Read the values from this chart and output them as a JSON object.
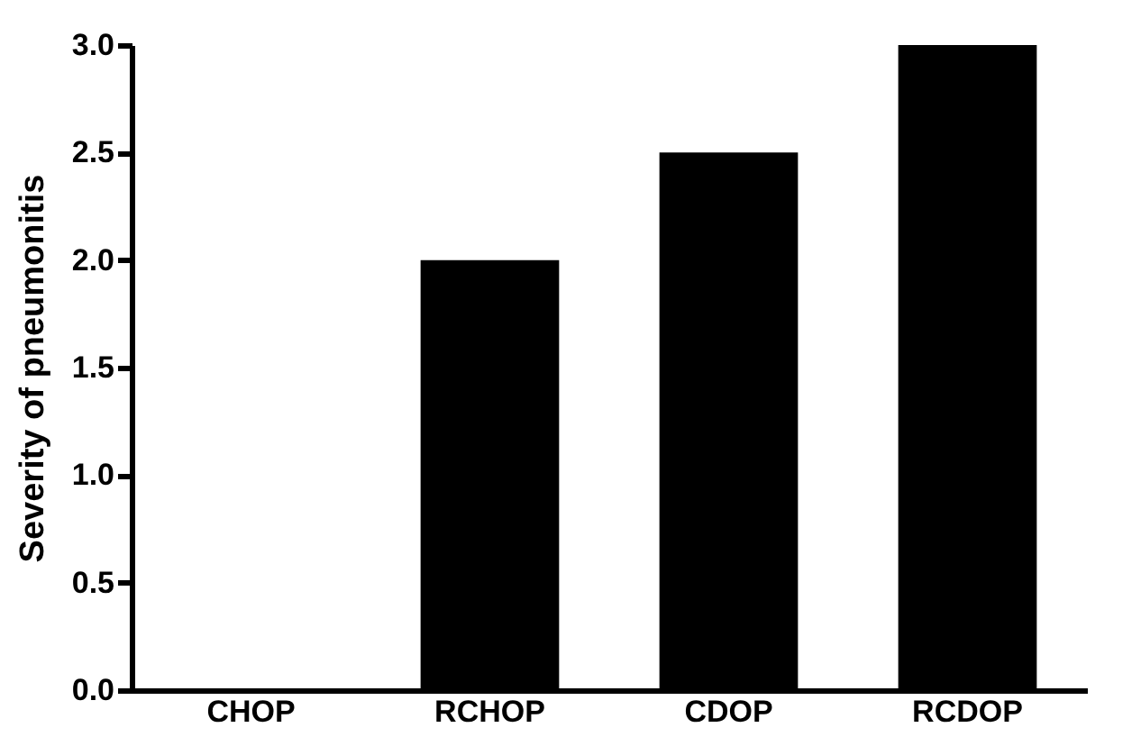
{
  "chart_data": {
    "type": "bar",
    "ylabel": "Severity of pneumonitis",
    "categories": [
      "CHOP",
      "RCHOP",
      "CDOP",
      "RCDOP"
    ],
    "values": [
      0,
      2.0,
      2.5,
      3.0
    ],
    "color": "#000000",
    "ylim": [
      0,
      3
    ],
    "yticks": [
      {
        "value": 0,
        "label": "0.0"
      },
      {
        "value": 0.5,
        "label": "0.5"
      },
      {
        "value": 1,
        "label": "1.0"
      },
      {
        "value": 1.5,
        "label": "1.5"
      },
      {
        "value": 2,
        "label": "2.0"
      },
      {
        "value": 2.5,
        "label": "2.5"
      },
      {
        "value": 3,
        "label": "3.0"
      }
    ],
    "grid": false
  }
}
